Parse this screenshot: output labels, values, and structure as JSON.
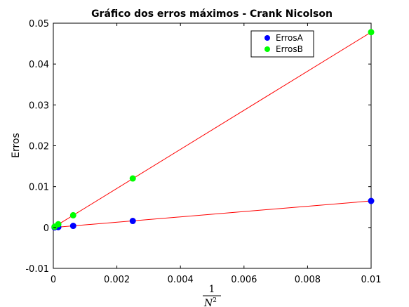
{
  "chart_data": {
    "type": "scatter",
    "title": "Gráfico dos erros máximos - Crank Nicolson",
    "ylabel": "Erros",
    "xlabel": {
      "numerator": "1",
      "denominator_base": "N",
      "denominator_exp": "2"
    },
    "xlim": [
      0,
      0.01
    ],
    "ylim": [
      -0.01,
      0.05
    ],
    "xticks": [
      0,
      0.002,
      0.004,
      0.006,
      0.008,
      0.01
    ],
    "xtick_labels": [
      "0",
      "0.002",
      "0.004",
      "0.006",
      "0.008",
      "0.01"
    ],
    "yticks": [
      -0.01,
      0,
      0.01,
      0.02,
      0.03,
      0.04,
      0.05
    ],
    "ytick_labels": [
      "-0.01",
      "0",
      "0.01",
      "0.02",
      "0.03",
      "0.04",
      "0.05"
    ],
    "grid": false,
    "legend_position": "top-right",
    "series": [
      {
        "name": "ErrosA",
        "color": "#0000ff",
        "x": [
          0.01,
          0.0025,
          0.000625,
          0.00015625,
          3.90625e-05
        ],
        "y": [
          0.0065,
          0.0016,
          0.0004,
          0.0001,
          3e-05
        ],
        "fit_line": {
          "color": "#ff0000",
          "x": [
            0,
            0.01
          ],
          "y": [
            0,
            0.0065
          ]
        }
      },
      {
        "name": "ErrosB",
        "color": "#00ff00",
        "x": [
          0.01,
          0.0025,
          0.000625,
          0.00015625,
          3.90625e-05
        ],
        "y": [
          0.0478,
          0.012,
          0.003,
          0.0008,
          0.0002
        ],
        "fit_line": {
          "color": "#ff0000",
          "x": [
            0,
            0.01
          ],
          "y": [
            0,
            0.0478
          ]
        }
      }
    ]
  }
}
